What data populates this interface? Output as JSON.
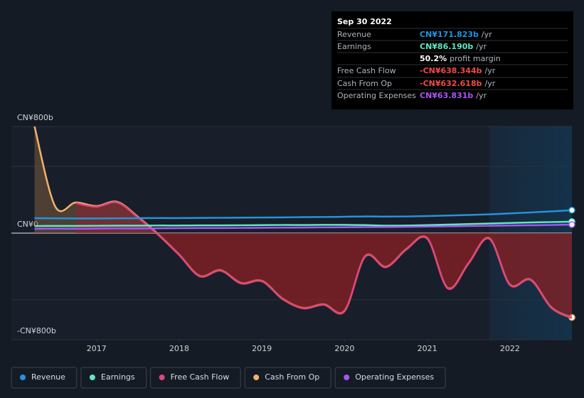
{
  "chart_data": {
    "type": "line",
    "x": [
      2016.25,
      2016.5,
      2016.75,
      2017,
      2017.25,
      2017.5,
      2017.75,
      2018,
      2018.25,
      2018.5,
      2018.75,
      2019,
      2019.25,
      2019.5,
      2019.75,
      2020,
      2020.25,
      2020.5,
      2020.75,
      2021,
      2021.25,
      2021.5,
      2021.75,
      2022,
      2022.25,
      2022.5,
      2022.75
    ],
    "xlim": [
      2015.97,
      2022.75
    ],
    "xticks": [
      2017,
      2018,
      2019,
      2020,
      2021,
      2022
    ],
    "ylim": [
      -800,
      800
    ],
    "yticks": [
      {
        "value": 800,
        "label": "CN¥800b"
      },
      {
        "value": 0,
        "label": "CN¥0"
      },
      {
        "value": -800,
        "label": "-CN¥800b"
      }
    ],
    "minor_gridlines": [
      500,
      -500
    ],
    "highlight_from": 2021.75,
    "series": [
      {
        "name": "Revenue",
        "color": "#2394df",
        "values": [
          112,
          111,
          110,
          110,
          111,
          112,
          113,
          113,
          114,
          115,
          116,
          117,
          118,
          120,
          121,
          123,
          125,
          124,
          125,
          128,
          132,
          136,
          141,
          148,
          155,
          163,
          171.823
        ]
      },
      {
        "name": "Earnings",
        "color": "#5ee8c4",
        "values": [
          53,
          54,
          54,
          55,
          56,
          56,
          57,
          57,
          58,
          58,
          59,
          60,
          61,
          61,
          62,
          62,
          60,
          56,
          57,
          60,
          64,
          68,
          72,
          76,
          80,
          83,
          86.19
        ]
      },
      {
        "name": "Free Cash Flow",
        "color": "#e0457b",
        "fill": "#8b2432",
        "values": [
          null,
          null,
          225,
          198,
          230,
          118,
          -15,
          -165,
          -325,
          -282,
          -378,
          -362,
          -495,
          -565,
          -538,
          -586,
          -176,
          -256,
          -122,
          -42,
          -416,
          -229,
          -42,
          -389,
          -352,
          -560,
          -638.344
        ]
      },
      {
        "name": "Cash From Op",
        "color": "#f4b26b",
        "fill": "#7a5a3a",
        "values": [
          800,
          200,
          230,
          203,
          235,
          123,
          -10,
          -160,
          -320,
          -277,
          -373,
          -357,
          -490,
          -560,
          -533,
          -581,
          -171,
          -251,
          -117,
          -37,
          -411,
          -224,
          -37,
          -384,
          -347,
          -555,
          -632.618
        ]
      },
      {
        "name": "Operating Expenses",
        "color": "#a855f7",
        "values": [
          32,
          33,
          33,
          34,
          35,
          35,
          36,
          37,
          38,
          38,
          39,
          40,
          41,
          42,
          43,
          44,
          45,
          46,
          47,
          49,
          51,
          53,
          55,
          57,
          59,
          61,
          63.831
        ]
      }
    ],
    "tooltip": {
      "date": "Sep 30 2022",
      "rows": [
        {
          "label": "Revenue",
          "value": "CN¥171.823b",
          "unit": "/yr",
          "color": "#2394df"
        },
        {
          "label": "Earnings",
          "value": "CN¥86.190b",
          "unit": "/yr",
          "color": "#5ee8c4"
        },
        {
          "label": "",
          "value": "50.2%",
          "unit": "profit margin",
          "color": "#ffffff"
        },
        {
          "label": "Free Cash Flow",
          "value": "-CN¥638.344b",
          "unit": "/yr",
          "color": "#f04a4a"
        },
        {
          "label": "Cash From Op",
          "value": "-CN¥632.618b",
          "unit": "/yr",
          "color": "#f04a4a"
        },
        {
          "label": "Operating Expenses",
          "value": "CN¥63.831b",
          "unit": "/yr",
          "color": "#a855f7"
        }
      ]
    }
  }
}
